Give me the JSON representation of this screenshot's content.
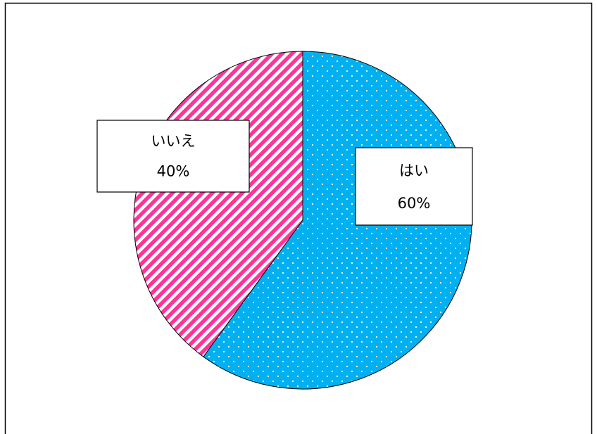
{
  "chart_data": {
    "type": "pie",
    "title": "",
    "slices": [
      {
        "label": "はい",
        "value": 60,
        "value_label": "60%",
        "color": "#00b0f0",
        "pattern": "dots-white"
      },
      {
        "label": "いいえ",
        "value": 40,
        "value_label": "40%",
        "color": "#ff3399",
        "pattern": "diagonal-stripes-white"
      }
    ],
    "start_angle_deg": 0,
    "direction": "clockwise",
    "legend": "none",
    "data_labels": "boxed-callouts"
  }
}
